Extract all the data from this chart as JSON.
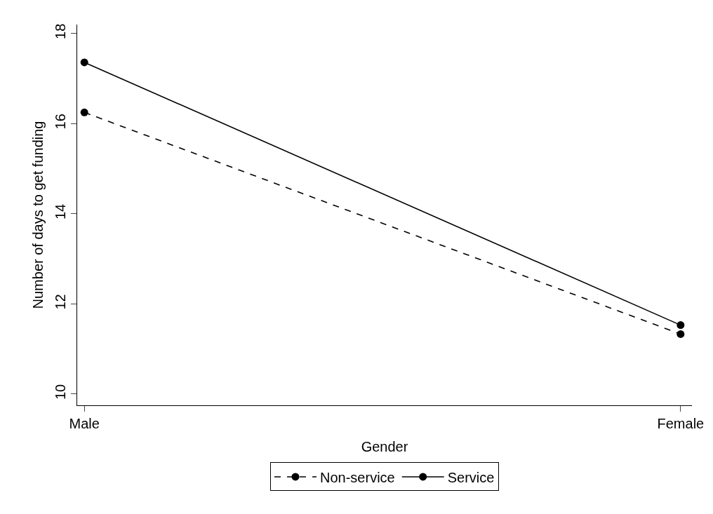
{
  "chart_data": {
    "type": "line",
    "xlabel": "Gender",
    "ylabel": "Number of days to get funding",
    "categories": [
      "Male",
      "Female"
    ],
    "series": [
      {
        "name": "Non-service",
        "color": "#000000",
        "line_style": "dashed",
        "values": [
          16.25,
          11.33
        ]
      },
      {
        "name": "Service",
        "color": "#000000",
        "line_style": "solid",
        "values": [
          17.36,
          11.53
        ]
      }
    ],
    "ylim": [
      9.75,
      18.2
    ],
    "yticks": [
      10,
      12,
      14,
      16,
      18
    ],
    "marker": "circle",
    "legend": "bottom"
  }
}
